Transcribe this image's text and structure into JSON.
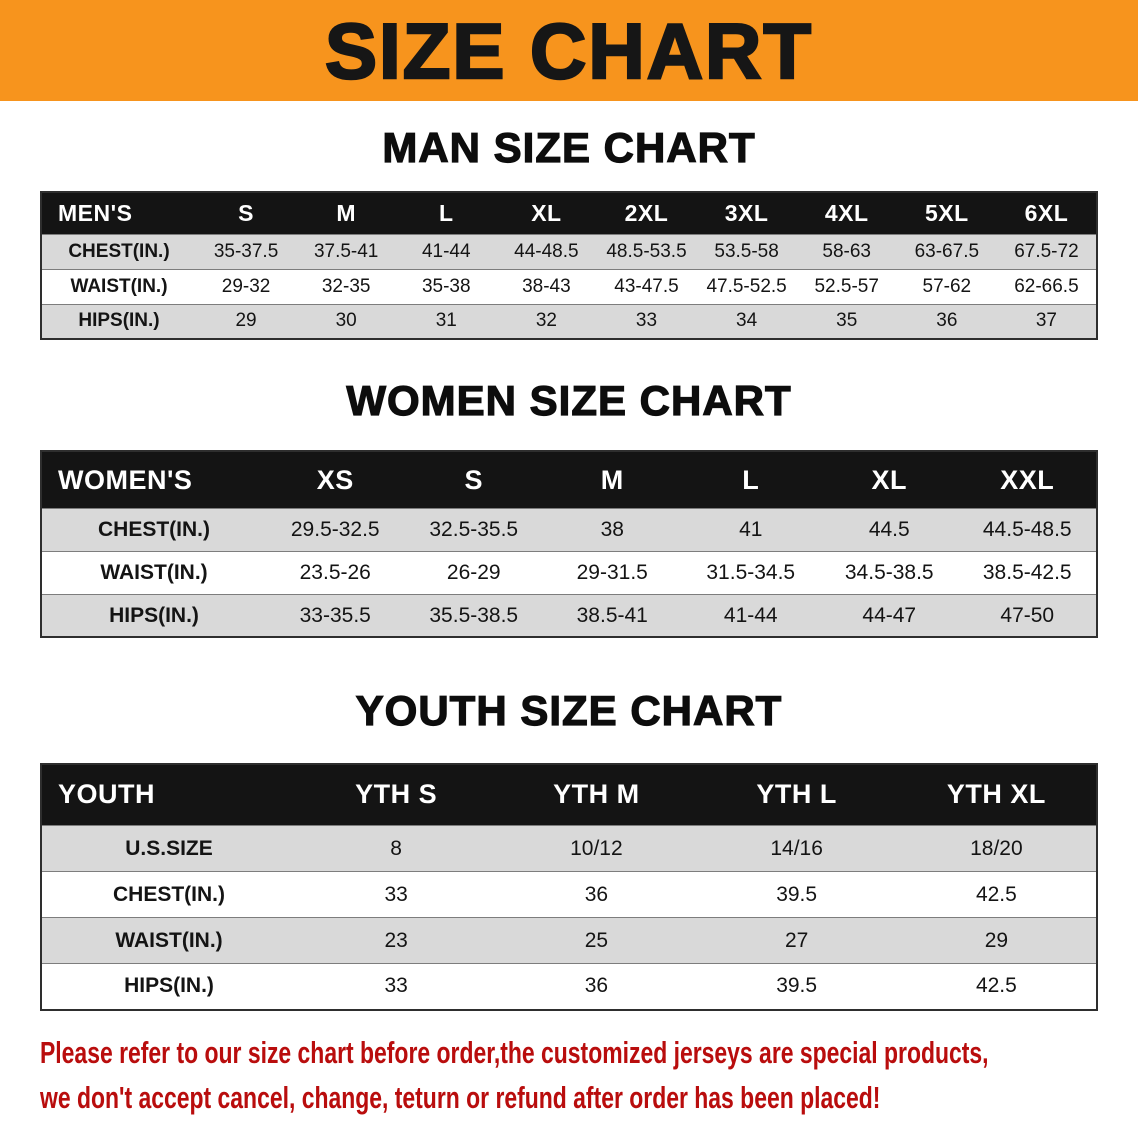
{
  "banner": {
    "title": "SIZE CHART",
    "bg_color": "#F7941D"
  },
  "sections": [
    {
      "id": "mens",
      "heading": "MAN SIZE CHART",
      "table": {
        "columns": [
          "MEN'S",
          "S",
          "M",
          "L",
          "XL",
          "2XL",
          "3XL",
          "4XL",
          "5XL",
          "6XL"
        ],
        "rows": [
          {
            "label": "CHEST(IN.)",
            "values": [
              "35-37.5",
              "37.5-41",
              "41-44",
              "44-48.5",
              "48.5-53.5",
              "53.5-58",
              "58-63",
              "63-67.5",
              "67.5-72"
            ]
          },
          {
            "label": "WAIST(IN.)",
            "values": [
              "29-32",
              "32-35",
              "35-38",
              "38-43",
              "43-47.5",
              "47.5-52.5",
              "52.5-57",
              "57-62",
              "62-66.5"
            ]
          },
          {
            "label": "HIPS(IN.)",
            "values": [
              "29",
              "30",
              "31",
              "32",
              "33",
              "34",
              "35",
              "36",
              "37"
            ]
          }
        ]
      }
    },
    {
      "id": "womens",
      "heading": "WOMEN SIZE CHART",
      "table": {
        "columns": [
          "WOMEN'S",
          "XS",
          "S",
          "M",
          "L",
          "XL",
          "XXL"
        ],
        "rows": [
          {
            "label": "CHEST(IN.)",
            "values": [
              "29.5-32.5",
              "32.5-35.5",
              "38",
              "41",
              "44.5",
              "44.5-48.5"
            ]
          },
          {
            "label": "WAIST(IN.)",
            "values": [
              "23.5-26",
              "26-29",
              "29-31.5",
              "31.5-34.5",
              "34.5-38.5",
              "38.5-42.5"
            ]
          },
          {
            "label": "HIPS(IN.)",
            "values": [
              "33-35.5",
              "35.5-38.5",
              "38.5-41",
              "41-44",
              "44-47",
              "47-50"
            ]
          }
        ]
      }
    },
    {
      "id": "youth",
      "heading": "YOUTH SIZE CHART",
      "table": {
        "columns": [
          "YOUTH",
          "YTH S",
          "YTH M",
          "YTH L",
          "YTH XL"
        ],
        "rows": [
          {
            "label": "U.S.SIZE",
            "values": [
              "8",
              "10/12",
              "14/16",
              "18/20"
            ]
          },
          {
            "label": "CHEST(IN.)",
            "values": [
              "33",
              "36",
              "39.5",
              "42.5"
            ]
          },
          {
            "label": "WAIST(IN.)",
            "values": [
              "23",
              "25",
              "27",
              "29"
            ]
          },
          {
            "label": "HIPS(IN.)",
            "values": [
              "33",
              "36",
              "39.5",
              "42.5"
            ]
          }
        ]
      }
    }
  ],
  "footer": {
    "line1": "Please refer to our size chart before order,the customized jerseys are special products,",
    "line2": "we don't accept cancel, change, teturn or refund after order has been placed!"
  }
}
